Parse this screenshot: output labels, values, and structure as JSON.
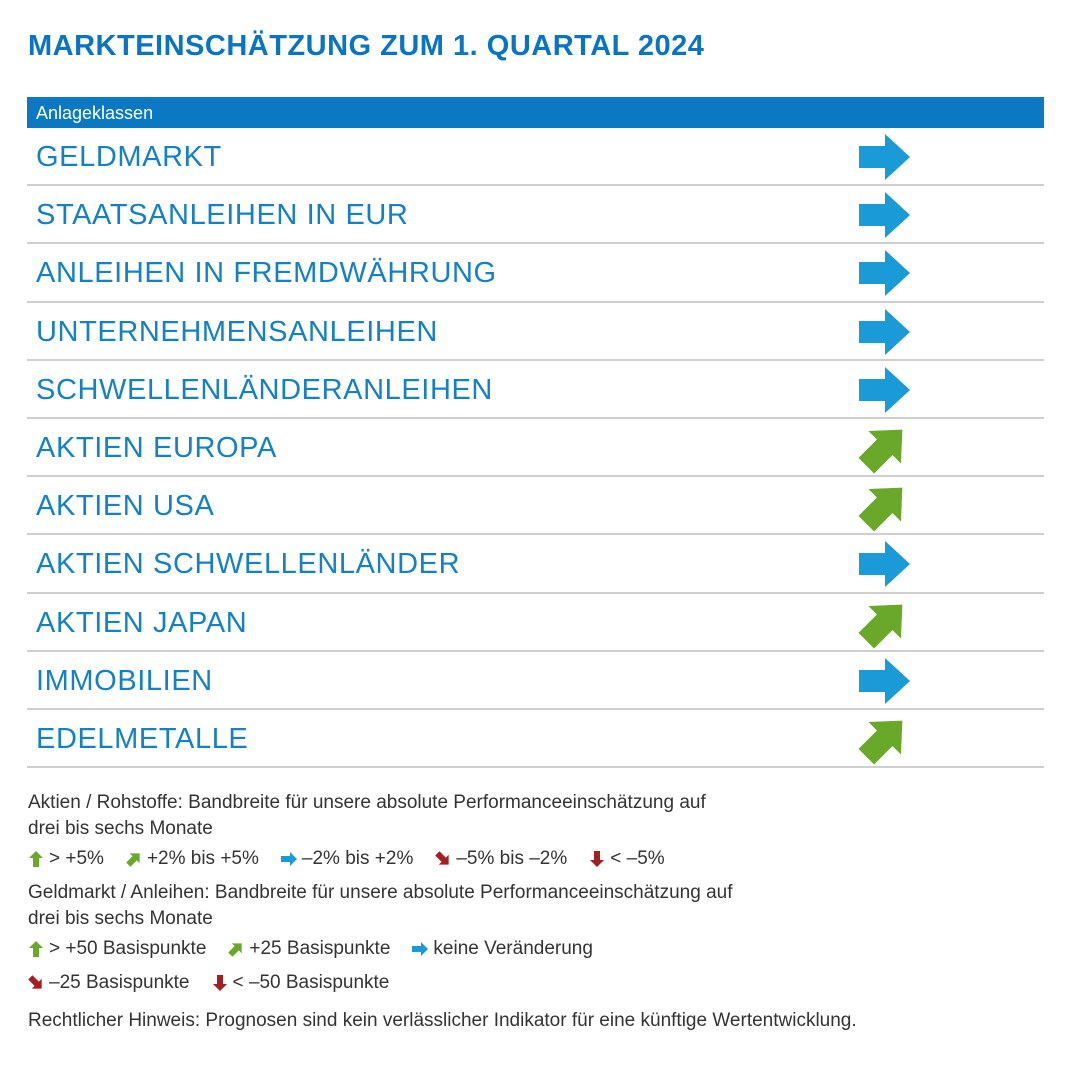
{
  "title": "MARKTEINSCHÄTZUNG ZUM 1. QUARTAL 2024",
  "table": {
    "header": "Anlageklassen",
    "rows": [
      {
        "label": "GELDMARKT",
        "trend": "right"
      },
      {
        "label": "STAATSANLEIHEN IN EUR",
        "trend": "right"
      },
      {
        "label": "ANLEIHEN IN FREMDWÄHRUNG",
        "trend": "right"
      },
      {
        "label": "UNTERNEHMENSANLEIHEN",
        "trend": "right"
      },
      {
        "label": "SCHWELLENLÄNDERANLEIHEN",
        "trend": "right"
      },
      {
        "label": "AKTIEN EUROPA",
        "trend": "up-right"
      },
      {
        "label": "AKTIEN USA",
        "trend": "up-right"
      },
      {
        "label": "AKTIEN SCHWELLENLÄNDER",
        "trend": "right"
      },
      {
        "label": "AKTIEN JAPAN",
        "trend": "up-right"
      },
      {
        "label": "IMMOBILIEN",
        "trend": "right"
      },
      {
        "label": "EDELMETALLE",
        "trend": "up-right"
      }
    ]
  },
  "legend": {
    "equities_text_line1": "Aktien / Rohstoffe: Bandbreite für unsere absolute Performanceeinschätzung auf",
    "equities_text_line2": "drei bis sechs Monate",
    "equities_items": [
      {
        "icon": "up",
        "label": "> +5%"
      },
      {
        "icon": "up-right",
        "label": "+2% bis +5%"
      },
      {
        "icon": "right",
        "label": "–2% bis +2%"
      },
      {
        "icon": "down-right",
        "label": "–5% bis –2%"
      },
      {
        "icon": "down",
        "label": "< –5%"
      }
    ],
    "bonds_text_line1": "Geldmarkt / Anleihen: Bandbreite für unsere absolute Performanceeinschätzung auf",
    "bonds_text_line2": "drei bis sechs Monate",
    "bonds_items_row1": [
      {
        "icon": "up",
        "label": "> +50 Basispunkte"
      },
      {
        "icon": "up-right",
        "label": "+25 Basispunkte"
      },
      {
        "icon": "right",
        "label": "keine Veränderung"
      }
    ],
    "bonds_items_row2": [
      {
        "icon": "down-right",
        "label": "–25 Basispunkte"
      },
      {
        "icon": "down",
        "label": "< –50 Basispunkte"
      }
    ],
    "disclaimer": "Rechtlicher Hinweis: Prognosen sind kein verlässlicher Indikator für eine künftige Wertentwicklung."
  },
  "colors": {
    "blue": "#0a78c2",
    "arrow_blue": "#1a9ad6",
    "green": "#6aa82a",
    "red": "#a51e22"
  }
}
